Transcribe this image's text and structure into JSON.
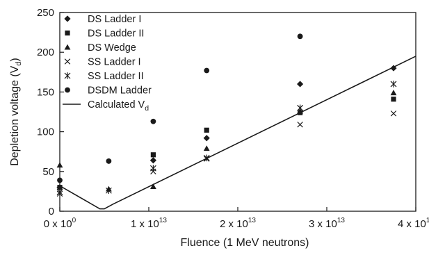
{
  "chart_data": {
    "type": "scatter",
    "title": "",
    "xlabel": "Fluence (1 MeV neutrons)",
    "ylabel": "Depletion voltage (V",
    "ylabel_sub": "d",
    "ylabel_close": ")",
    "xlim": [
      0,
      40000000000000.0
    ],
    "ylim": [
      0,
      250
    ],
    "x_ticks": [
      {
        "value": 0,
        "mant": "0 x 10",
        "exp": "0"
      },
      {
        "value": 10000000000000.0,
        "mant": "1 x 10",
        "exp": "13"
      },
      {
        "value": 20000000000000.0,
        "mant": "2 x 10",
        "exp": "13"
      },
      {
        "value": 30000000000000.0,
        "mant": "3 x 10",
        "exp": "13"
      },
      {
        "value": 40000000000000.0,
        "mant": "4 x 10",
        "exp": "13"
      }
    ],
    "y_ticks": [
      0,
      50,
      100,
      150,
      200,
      250
    ],
    "grid": false,
    "legend_position": "top-left",
    "series": [
      {
        "name": "DS Ladder I",
        "marker": "diamond",
        "points": [
          [
            0,
            30
          ],
          [
            10500000000000.0,
            64
          ],
          [
            16500000000000.0,
            92
          ],
          [
            27000000000000.0,
            160
          ],
          [
            37500000000000.0,
            180
          ]
        ]
      },
      {
        "name": "DS Ladder II",
        "marker": "square",
        "points": [
          [
            0,
            30
          ],
          [
            10500000000000.0,
            71
          ],
          [
            16500000000000.0,
            102
          ],
          [
            27000000000000.0,
            124
          ],
          [
            37500000000000.0,
            141
          ]
        ]
      },
      {
        "name": "DS Wedge",
        "marker": "triangle",
        "points": [
          [
            0,
            58
          ],
          [
            5500000000000.0,
            28
          ],
          [
            10500000000000.0,
            31
          ],
          [
            16500000000000.0,
            79
          ],
          [
            27000000000000.0,
            126
          ],
          [
            37500000000000.0,
            149
          ]
        ]
      },
      {
        "name": "SS Ladder I",
        "marker": "x",
        "points": [
          [
            0,
            22
          ],
          [
            10500000000000.0,
            50
          ],
          [
            16500000000000.0,
            66
          ],
          [
            27000000000000.0,
            109
          ],
          [
            37500000000000.0,
            123
          ]
        ]
      },
      {
        "name": "SS Ladder II",
        "marker": "asterisk",
        "points": [
          [
            0,
            24
          ],
          [
            5500000000000.0,
            26
          ],
          [
            10500000000000.0,
            54
          ],
          [
            16500000000000.0,
            67
          ],
          [
            27000000000000.0,
            130
          ],
          [
            37500000000000.0,
            160
          ]
        ]
      },
      {
        "name": "DSDM Ladder",
        "marker": "circle",
        "points": [
          [
            0,
            39
          ],
          [
            5500000000000.0,
            63
          ],
          [
            10500000000000.0,
            113
          ],
          [
            16500000000000.0,
            177
          ],
          [
            27000000000000.0,
            220
          ]
        ]
      },
      {
        "name": "Calculated V",
        "name_sub": "d",
        "marker": "line",
        "points": [
          [
            0,
            32
          ],
          [
            4500000000000.0,
            3
          ],
          [
            5000000000000.0,
            3
          ],
          [
            6000000000000.0,
            9
          ],
          [
            40000000000000.0,
            195
          ]
        ]
      }
    ]
  }
}
